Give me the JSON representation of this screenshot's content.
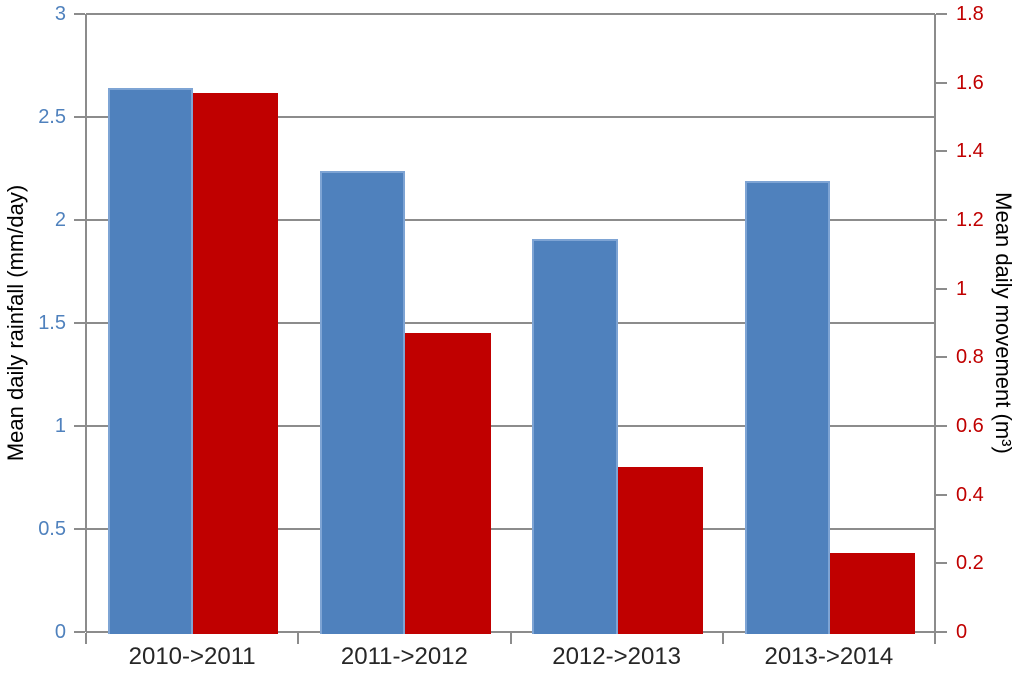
{
  "chart_data": {
    "type": "bar",
    "title": "",
    "categories": [
      "2010->2011",
      "2011->2012",
      "2012->2013",
      "2013->2014"
    ],
    "series": [
      {
        "name": "Mean daily rainfall",
        "axis": "left",
        "color": "#4F81BD",
        "values": [
          2.64,
          2.24,
          1.91,
          2.19
        ]
      },
      {
        "name": "Mean daily movement",
        "axis": "right",
        "color": "#C00000",
        "values": [
          1.57,
          0.87,
          0.48,
          0.23
        ]
      }
    ],
    "left_axis": {
      "title": "Mean daily rainfall (mm/day)",
      "min": 0,
      "max": 3,
      "tick_labels": [
        "3",
        "2.5",
        "2",
        "1.5",
        "1",
        "0.5",
        "0"
      ],
      "color": "#4F81BD"
    },
    "right_axis": {
      "title": "Mean daily movement (m³)",
      "min": 0,
      "max": 1.8,
      "tick_labels": [
        "1.8",
        "1.6",
        "1.4",
        "1.2",
        "1",
        "0.8",
        "0.6",
        "0.4",
        "0.2",
        "0"
      ],
      "color": "#C00000"
    },
    "x_axis": {
      "label_color": "#262626"
    },
    "grid": {
      "show": true,
      "color": "#8C8C8C"
    },
    "legend": {
      "show": false
    },
    "background": "#FFFFFF"
  }
}
